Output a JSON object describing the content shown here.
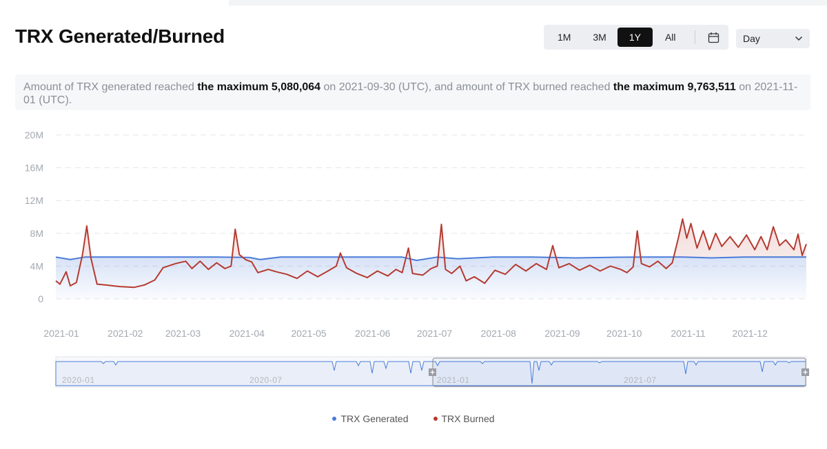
{
  "title": "TRX Generated/Burned",
  "range_buttons": [
    {
      "label": "1M",
      "active": false
    },
    {
      "label": "3M",
      "active": false
    },
    {
      "label": "1Y",
      "active": true
    },
    {
      "label": "All",
      "active": false
    }
  ],
  "granularity": {
    "selected": "Day"
  },
  "summary": {
    "p1": "Amount of TRX generated reached ",
    "b1": "the maximum 5,080,064",
    "p2": " on 2021-09-30 (UTC), and amount of TRX burned reached ",
    "b2": "the maximum 9,763,511",
    "p3": " on 2021-11-01 (UTC)."
  },
  "colors": {
    "generated": "#4a7bd8",
    "burned": "#b53a30",
    "grid": "#e3e5e8",
    "axis_text": "#a3a8b0"
  },
  "chart_data": {
    "type": "line",
    "x_range": [
      "2021-01-01",
      "2021-12-31"
    ],
    "x_ticks": [
      "2021-01",
      "2021-02",
      "2021-03",
      "2021-04",
      "2021-05",
      "2021-06",
      "2021-07",
      "2021-08",
      "2021-09",
      "2021-10",
      "2021-11",
      "2021-12"
    ],
    "y_ticks": [
      "20M",
      "16M",
      "12M",
      "8M",
      "4M",
      "0"
    ],
    "ylim": [
      0,
      20000000
    ],
    "grid": true,
    "legend_position": "bottom-center",
    "series": [
      {
        "name": "TRX Generated",
        "color": "#4a7bd8",
        "points": [
          [
            "2021-01-01",
            5.1
          ],
          [
            "2021-01-08",
            4.8
          ],
          [
            "2021-01-15",
            5.1
          ],
          [
            "2021-02-01",
            5.1
          ],
          [
            "2021-02-15",
            5.1
          ],
          [
            "2021-03-01",
            5.1
          ],
          [
            "2021-03-20",
            5.1
          ],
          [
            "2021-04-05",
            5.05
          ],
          [
            "2021-04-10",
            4.8
          ],
          [
            "2021-04-20",
            5.1
          ],
          [
            "2021-05-10",
            5.1
          ],
          [
            "2021-06-01",
            5.1
          ],
          [
            "2021-06-18",
            5.1
          ],
          [
            "2021-06-25",
            4.7
          ],
          [
            "2021-07-05",
            5.1
          ],
          [
            "2021-07-15",
            4.9
          ],
          [
            "2021-08-01",
            5.1
          ],
          [
            "2021-08-20",
            5.1
          ],
          [
            "2021-09-10",
            5.0
          ],
          [
            "2021-09-30",
            5.08
          ],
          [
            "2021-10-15",
            5.1
          ],
          [
            "2021-11-01",
            5.1
          ],
          [
            "2021-11-15",
            5.0
          ],
          [
            "2021-12-01",
            5.1
          ],
          [
            "2021-12-20",
            5.1
          ],
          [
            "2021-12-31",
            5.1
          ]
        ]
      },
      {
        "name": "TRX Burned",
        "color": "#b53a30",
        "points": [
          [
            "2021-01-01",
            2.2
          ],
          [
            "2021-01-03",
            1.8
          ],
          [
            "2021-01-06",
            3.3
          ],
          [
            "2021-01-08",
            1.6
          ],
          [
            "2021-01-11",
            2.0
          ],
          [
            "2021-01-14",
            5.5
          ],
          [
            "2021-01-16",
            8.9
          ],
          [
            "2021-01-18",
            5.0
          ],
          [
            "2021-01-21",
            1.8
          ],
          [
            "2021-01-25",
            1.7
          ],
          [
            "2021-02-01",
            1.5
          ],
          [
            "2021-02-08",
            1.4
          ],
          [
            "2021-02-13",
            1.7
          ],
          [
            "2021-02-18",
            2.3
          ],
          [
            "2021-02-22",
            3.8
          ],
          [
            "2021-02-28",
            4.3
          ],
          [
            "2021-03-05",
            4.6
          ],
          [
            "2021-03-08",
            3.7
          ],
          [
            "2021-03-12",
            4.6
          ],
          [
            "2021-03-16",
            3.6
          ],
          [
            "2021-03-20",
            4.4
          ],
          [
            "2021-03-24",
            3.7
          ],
          [
            "2021-03-27",
            4.0
          ],
          [
            "2021-03-29",
            8.5
          ],
          [
            "2021-03-31",
            5.4
          ],
          [
            "2021-04-03",
            4.8
          ],
          [
            "2021-04-06",
            4.5
          ],
          [
            "2021-04-09",
            3.2
          ],
          [
            "2021-04-14",
            3.6
          ],
          [
            "2021-04-18",
            3.3
          ],
          [
            "2021-04-23",
            3.0
          ],
          [
            "2021-04-28",
            2.5
          ],
          [
            "2021-05-03",
            3.4
          ],
          [
            "2021-05-08",
            2.7
          ],
          [
            "2021-05-13",
            3.4
          ],
          [
            "2021-05-17",
            4.0
          ],
          [
            "2021-05-19",
            5.6
          ],
          [
            "2021-05-22",
            3.8
          ],
          [
            "2021-05-27",
            3.1
          ],
          [
            "2021-06-01",
            2.6
          ],
          [
            "2021-06-06",
            3.4
          ],
          [
            "2021-06-11",
            2.8
          ],
          [
            "2021-06-15",
            3.6
          ],
          [
            "2021-06-18",
            3.2
          ],
          [
            "2021-06-21",
            6.2
          ],
          [
            "2021-06-23",
            3.1
          ],
          [
            "2021-06-28",
            2.9
          ],
          [
            "2021-07-02",
            3.7
          ],
          [
            "2021-07-05",
            4.0
          ],
          [
            "2021-07-07",
            9.1
          ],
          [
            "2021-07-09",
            3.6
          ],
          [
            "2021-07-12",
            3.1
          ],
          [
            "2021-07-16",
            4.0
          ],
          [
            "2021-07-19",
            2.2
          ],
          [
            "2021-07-23",
            2.7
          ],
          [
            "2021-07-28",
            1.9
          ],
          [
            "2021-08-02",
            3.5
          ],
          [
            "2021-08-07",
            3.0
          ],
          [
            "2021-08-12",
            4.2
          ],
          [
            "2021-08-17",
            3.4
          ],
          [
            "2021-08-22",
            4.3
          ],
          [
            "2021-08-27",
            3.6
          ],
          [
            "2021-08-30",
            6.5
          ],
          [
            "2021-09-02",
            3.8
          ],
          [
            "2021-09-07",
            4.3
          ],
          [
            "2021-09-12",
            3.5
          ],
          [
            "2021-09-17",
            4.1
          ],
          [
            "2021-09-22",
            3.4
          ],
          [
            "2021-09-27",
            4.0
          ],
          [
            "2021-10-02",
            3.6
          ],
          [
            "2021-10-05",
            3.2
          ],
          [
            "2021-10-08",
            3.9
          ],
          [
            "2021-10-10",
            8.3
          ],
          [
            "2021-10-12",
            4.3
          ],
          [
            "2021-10-16",
            3.9
          ],
          [
            "2021-10-20",
            4.6
          ],
          [
            "2021-10-24",
            3.7
          ],
          [
            "2021-10-27",
            4.4
          ],
          [
            "2021-10-30",
            7.5
          ],
          [
            "2021-11-01",
            9.76
          ],
          [
            "2021-11-03",
            7.4
          ],
          [
            "2021-11-05",
            9.2
          ],
          [
            "2021-11-08",
            6.2
          ],
          [
            "2021-11-11",
            8.3
          ],
          [
            "2021-11-14",
            6.0
          ],
          [
            "2021-11-17",
            8.0
          ],
          [
            "2021-11-20",
            6.4
          ],
          [
            "2021-11-24",
            7.6
          ],
          [
            "2021-11-28",
            6.3
          ],
          [
            "2021-12-02",
            7.8
          ],
          [
            "2021-12-06",
            6.0
          ],
          [
            "2021-12-09",
            7.6
          ],
          [
            "2021-12-12",
            6.0
          ],
          [
            "2021-12-15",
            8.8
          ],
          [
            "2021-12-18",
            6.5
          ],
          [
            "2021-12-21",
            7.2
          ],
          [
            "2021-12-25",
            6.0
          ],
          [
            "2021-12-27",
            7.9
          ],
          [
            "2021-12-29",
            5.3
          ],
          [
            "2021-12-31",
            6.7
          ]
        ]
      }
    ]
  },
  "overview": {
    "labels": [
      "2020-01",
      "2020-07",
      "2021-01",
      "2021-07"
    ]
  }
}
